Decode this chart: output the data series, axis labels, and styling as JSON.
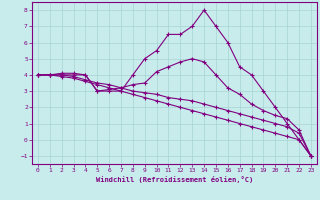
{
  "xlabel": "Windchill (Refroidissement éolien,°C)",
  "bg_color": "#c8ecec",
  "line_color": "#800080",
  "grid_color": "#a8d4d4",
  "xlim": [
    -0.5,
    23.5
  ],
  "ylim": [
    -1.5,
    8.5
  ],
  "yticks": [
    -1,
    0,
    1,
    2,
    3,
    4,
    5,
    6,
    7,
    8
  ],
  "xticks": [
    0,
    1,
    2,
    3,
    4,
    5,
    6,
    7,
    8,
    9,
    10,
    11,
    12,
    13,
    14,
    15,
    16,
    17,
    18,
    19,
    20,
    21,
    22,
    23
  ],
  "lines": [
    {
      "x": [
        0,
        1,
        2,
        3,
        4,
        5,
        6,
        7,
        8,
        9,
        10,
        11,
        12,
        13,
        14,
        15,
        16,
        17,
        18,
        19,
        20,
        21,
        22,
        23
      ],
      "y": [
        4.0,
        4.0,
        4.0,
        4.0,
        4.0,
        3.0,
        3.0,
        3.0,
        4.0,
        5.0,
        5.5,
        6.5,
        6.5,
        7.0,
        8.0,
        7.0,
        6.0,
        4.5,
        4.0,
        3.0,
        2.0,
        1.0,
        0.0,
        -1.0
      ]
    },
    {
      "x": [
        0,
        1,
        2,
        3,
        4,
        5,
        6,
        7,
        8,
        9,
        10,
        11,
        12,
        13,
        14,
        15,
        16,
        17,
        18,
        19,
        20,
        21,
        22,
        23
      ],
      "y": [
        4.0,
        4.0,
        3.9,
        3.8,
        3.6,
        3.4,
        3.2,
        3.0,
        2.8,
        2.6,
        2.4,
        2.2,
        2.0,
        1.8,
        1.6,
        1.4,
        1.2,
        1.0,
        0.8,
        0.6,
        0.4,
        0.2,
        0.0,
        -1.0
      ]
    },
    {
      "x": [
        0,
        1,
        2,
        3,
        4,
        5,
        6,
        7,
        8,
        9,
        10,
        11,
        12,
        13,
        14,
        15,
        16,
        17,
        18,
        19,
        20,
        21,
        22,
        23
      ],
      "y": [
        4.0,
        4.0,
        4.0,
        3.9,
        3.7,
        3.5,
        3.4,
        3.2,
        3.0,
        2.9,
        2.8,
        2.6,
        2.5,
        2.4,
        2.2,
        2.0,
        1.8,
        1.6,
        1.4,
        1.2,
        1.0,
        0.8,
        0.4,
        -1.0
      ]
    },
    {
      "x": [
        0,
        1,
        2,
        3,
        4,
        5,
        6,
        7,
        8,
        9,
        10,
        11,
        12,
        13,
        14,
        15,
        16,
        17,
        18,
        19,
        20,
        21,
        22,
        23
      ],
      "y": [
        4.0,
        4.0,
        4.1,
        4.1,
        4.0,
        3.0,
        3.1,
        3.2,
        3.4,
        3.5,
        4.2,
        4.5,
        4.8,
        5.0,
        4.8,
        4.0,
        3.2,
        2.8,
        2.2,
        1.8,
        1.5,
        1.3,
        0.6,
        -1.0
      ]
    }
  ]
}
